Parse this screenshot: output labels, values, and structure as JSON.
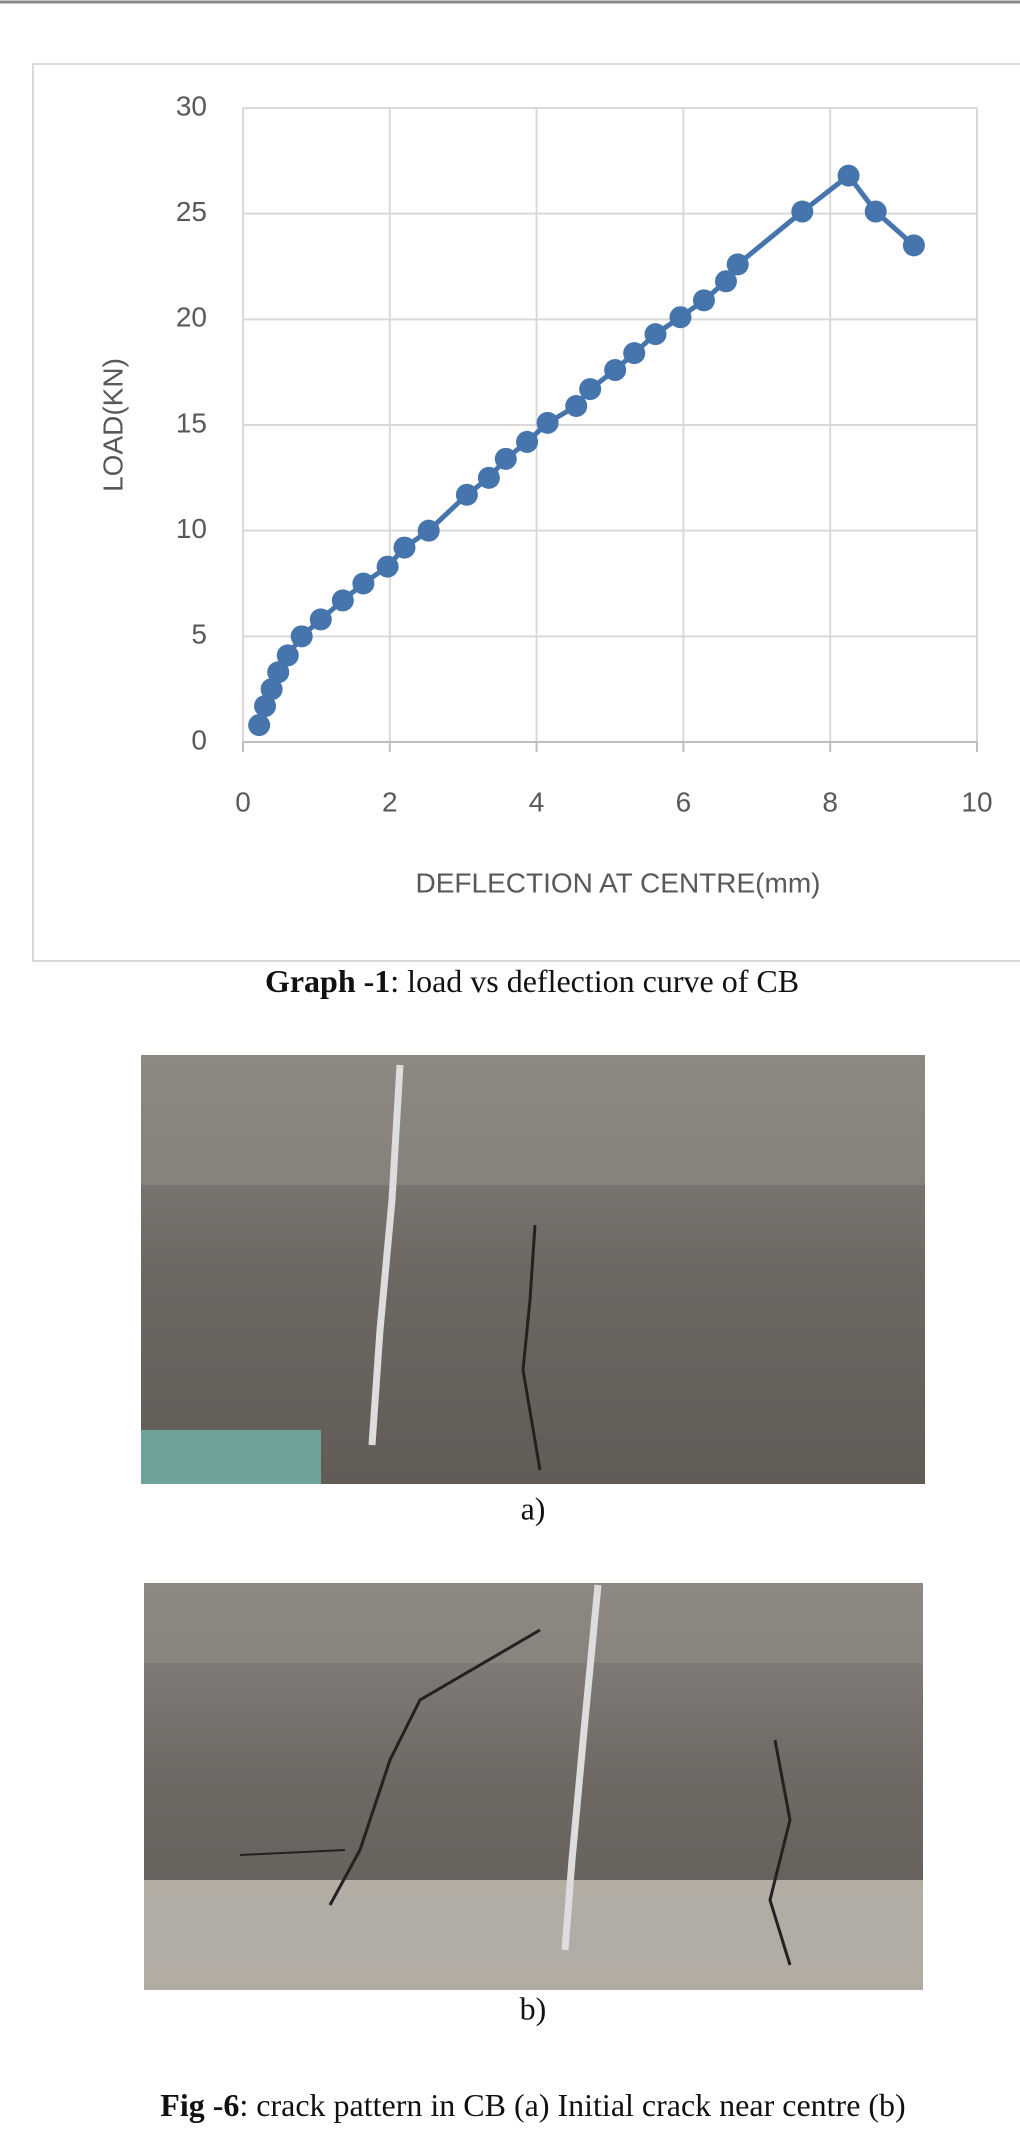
{
  "chart_data": {
    "type": "line",
    "x_label": "DEFLECTION AT CENTRE(mm)",
    "y_label": "LOAD(KN)",
    "x": [
      0.22,
      0.3,
      0.39,
      0.48,
      0.61,
      0.8,
      1.06,
      1.36,
      1.64,
      1.97,
      2.2,
      2.53,
      3.05,
      3.35,
      3.58,
      3.87,
      4.15,
      4.54,
      4.73,
      5.07,
      5.33,
      5.62,
      5.96,
      6.28,
      6.58,
      6.74,
      7.62,
      8.25,
      8.62,
      9.14
    ],
    "values": [
      0.8,
      1.7,
      2.5,
      3.3,
      4.1,
      5.0,
      5.8,
      6.7,
      7.5,
      8.3,
      9.2,
      10.0,
      11.7,
      12.5,
      13.4,
      14.2,
      15.1,
      15.9,
      16.7,
      17.6,
      18.4,
      19.3,
      20.1,
      20.9,
      21.8,
      22.6,
      25.1,
      26.8,
      25.1,
      23.5
    ],
    "color": "#4674ad",
    "xlim": [
      0,
      10
    ],
    "xticks": [
      0,
      2,
      4,
      6,
      8,
      10
    ],
    "ylim": [
      0,
      30
    ],
    "yticks": [
      0,
      5,
      10,
      15,
      20,
      25,
      30
    ],
    "grid": true
  },
  "graph_caption": {
    "label": "Graph -1",
    "text": ": load vs deflection curve of CB"
  },
  "photos": [
    {
      "label": "a)"
    },
    {
      "label": "b)"
    }
  ],
  "figure_caption": {
    "label": "Fig -6",
    "text": ": crack pattern in CB (a) Initial crack near centre (b)"
  }
}
